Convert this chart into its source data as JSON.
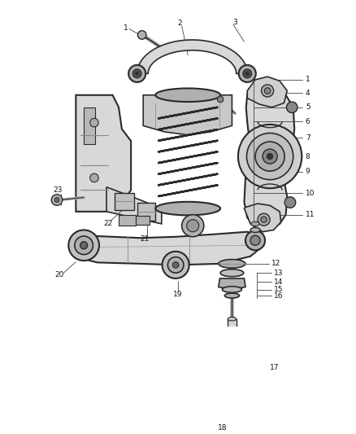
{
  "background_color": "#ffffff",
  "fig_width": 4.38,
  "fig_height": 5.33,
  "dpi": 100,
  "line_color": "#2a2a2a",
  "fill_light": "#d8d8d8",
  "fill_mid": "#b0b0b0",
  "fill_dark": "#888888",
  "label_fs": 6.5,
  "label_color": "#111111",
  "leader_color": "#444444"
}
